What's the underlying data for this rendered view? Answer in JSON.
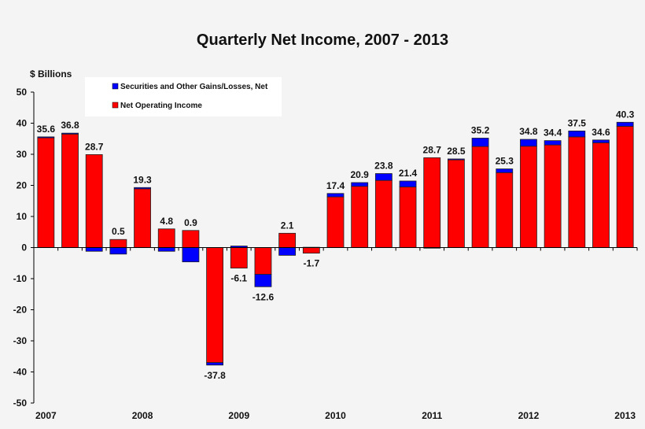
{
  "chart_data": {
    "type": "bar",
    "stacked": true,
    "title": "Quarterly Net Income, 2007 - 2013",
    "ylabel": "$ Billions",
    "ylim": [
      -50,
      50
    ],
    "yticks": [
      50,
      40,
      30,
      20,
      10,
      0,
      -10,
      -20,
      -30,
      -40,
      -50
    ],
    "grid": false,
    "legend_position": "top-left",
    "x_tick_labels": [
      "2007",
      "2008",
      "2009",
      "2010",
      "2011",
      "2012",
      "2013"
    ],
    "categories": [
      "2007Q1",
      "2007Q2",
      "2007Q3",
      "2007Q4",
      "2008Q1",
      "2008Q2",
      "2008Q3",
      "2008Q4",
      "2009Q1",
      "2009Q2",
      "2009Q3",
      "2009Q4",
      "2010Q1",
      "2010Q2",
      "2010Q3",
      "2010Q4",
      "2011Q1",
      "2011Q2",
      "2011Q3",
      "2011Q4",
      "2012Q1",
      "2012Q2",
      "2012Q3",
      "2012Q4",
      "2013Q1"
    ],
    "series": [
      {
        "name": "Net Operating Income",
        "color": "#ff0000",
        "values": [
          35.3,
          36.5,
          29.9,
          2.6,
          18.9,
          6.0,
          5.5,
          -37.0,
          -6.6,
          -8.6,
          4.6,
          -1.8,
          16.3,
          19.7,
          21.6,
          19.5,
          28.9,
          28.2,
          32.5,
          24.1,
          32.6,
          33.0,
          35.6,
          33.7,
          39.0
        ]
      },
      {
        "name": "Securities and Other Gains/Losses, Net",
        "color": "#0000ff",
        "values": [
          0.3,
          0.3,
          -1.2,
          -2.1,
          0.4,
          -1.2,
          -4.6,
          -0.8,
          0.5,
          -4.0,
          -2.5,
          0.1,
          1.1,
          1.2,
          2.2,
          1.9,
          -0.2,
          0.3,
          2.7,
          1.2,
          2.2,
          1.4,
          1.9,
          0.9,
          1.3
        ]
      }
    ],
    "data_labels": [
      "35.6",
      "36.8",
      "28.7",
      "0.5",
      "19.3",
      "4.8",
      "0.9",
      "-37.8",
      "-6.1",
      "-12.6",
      "2.1",
      "-1.7",
      "17.4",
      "20.9",
      "23.8",
      "21.4",
      "28.7",
      "28.5",
      "35.2",
      "25.3",
      "34.8",
      "34.4",
      "37.5",
      "34.6",
      "40.3"
    ]
  }
}
